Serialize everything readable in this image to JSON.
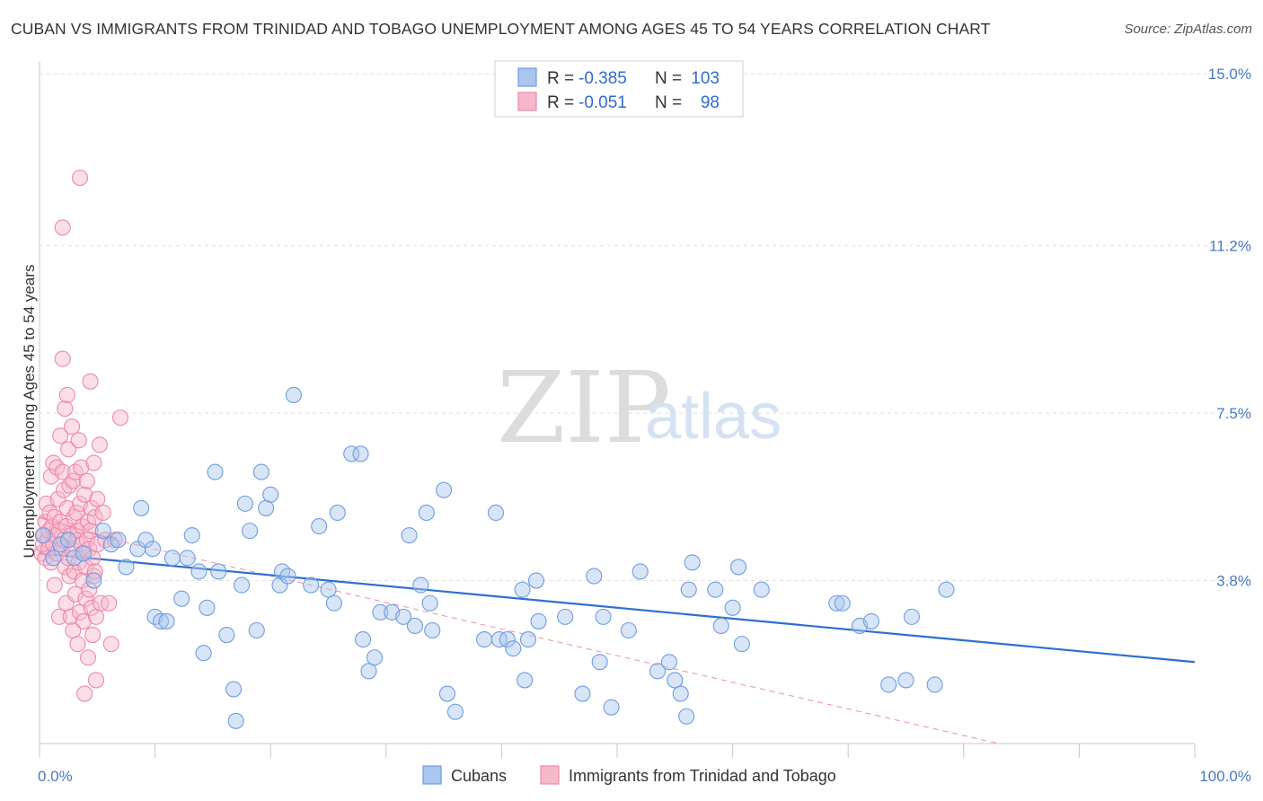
{
  "header": {
    "title": "CUBAN VS IMMIGRANTS FROM TRINIDAD AND TOBAGO UNEMPLOYMENT AMONG AGES 45 TO 54 YEARS CORRELATION CHART",
    "source": "Source: ZipAtlas.com"
  },
  "watermark": {
    "zip": "ZIP",
    "atlas": "atlas"
  },
  "legend": {
    "rows": [
      {
        "r_label": "R =",
        "r_value": "-0.385",
        "n_label": "N =",
        "n_value": "103"
      },
      {
        "r_label": "R =",
        "r_value": "-0.051",
        "n_label": "N =",
        "n_value": "98"
      }
    ],
    "bottom": [
      "Cubans",
      "Immigrants from Trinidad and Tobago"
    ]
  },
  "colors": {
    "cubans_fill": "#a9c6ee",
    "cubans_stroke": "#6f9de0",
    "cubans_line": "#2f6fd1",
    "tt_fill": "#f6b8cb",
    "tt_stroke": "#ee88a8",
    "tt_line": "#e8709a",
    "grid": "#e0e0e0",
    "tick_text": "#4a78c2"
  },
  "chart_data": {
    "type": "scatter",
    "title": "CUBAN VS IMMIGRANTS FROM TRINIDAD AND TOBAGO UNEMPLOYMENT AMONG AGES 45 TO 54 YEARS CORRELATION CHART",
    "xlabel": "",
    "ylabel": "Unemployment Among Ages 45 to 54 years",
    "xlim": [
      0,
      100
    ],
    "ylim": [
      0.2,
      15.2
    ],
    "x_tick_labels": [
      "0.0%",
      "100.0%"
    ],
    "y_ticks": [
      3.8,
      7.5,
      11.2,
      15.0
    ],
    "y_tick_labels": [
      "3.8%",
      "7.5%",
      "11.2%",
      "15.0%"
    ],
    "grid": true,
    "legend_position": "top-center",
    "series": [
      {
        "name": "Cubans",
        "R": -0.385,
        "N": 103,
        "trend": {
          "x0": 0,
          "y0": 4.4,
          "x1": 100,
          "y1": 2.0
        },
        "points": [
          [
            0.3,
            4.8
          ],
          [
            1.2,
            4.3
          ],
          [
            1.8,
            4.6
          ],
          [
            2.5,
            4.7
          ],
          [
            3.0,
            4.3
          ],
          [
            3.8,
            4.4
          ],
          [
            4.7,
            3.8
          ],
          [
            5.5,
            4.9
          ],
          [
            6.2,
            4.6
          ],
          [
            6.8,
            4.7
          ],
          [
            7.5,
            4.1
          ],
          [
            8.5,
            4.5
          ],
          [
            8.8,
            5.4
          ],
          [
            9.2,
            4.7
          ],
          [
            9.8,
            4.5
          ],
          [
            10.0,
            3.0
          ],
          [
            10.5,
            2.9
          ],
          [
            11.0,
            2.9
          ],
          [
            11.5,
            4.3
          ],
          [
            12.3,
            3.4
          ],
          [
            12.8,
            4.3
          ],
          [
            13.2,
            4.8
          ],
          [
            13.8,
            4.0
          ],
          [
            14.2,
            2.2
          ],
          [
            14.5,
            3.2
          ],
          [
            15.2,
            6.2
          ],
          [
            15.5,
            4.0
          ],
          [
            16.2,
            2.6
          ],
          [
            16.8,
            1.4
          ],
          [
            17.0,
            0.7
          ],
          [
            17.5,
            3.7
          ],
          [
            17.8,
            5.5
          ],
          [
            18.2,
            4.9
          ],
          [
            18.8,
            2.7
          ],
          [
            19.2,
            6.2
          ],
          [
            19.6,
            5.4
          ],
          [
            20.0,
            5.7
          ],
          [
            20.8,
            3.7
          ],
          [
            21.0,
            4.0
          ],
          [
            21.5,
            3.9
          ],
          [
            22.0,
            7.9
          ],
          [
            23.5,
            3.7
          ],
          [
            24.2,
            5.0
          ],
          [
            25.0,
            3.6
          ],
          [
            25.5,
            3.3
          ],
          [
            25.8,
            5.3
          ],
          [
            27.0,
            6.6
          ],
          [
            27.8,
            6.6
          ],
          [
            28.0,
            2.5
          ],
          [
            28.5,
            1.8
          ],
          [
            29.0,
            2.1
          ],
          [
            29.5,
            3.1
          ],
          [
            30.5,
            3.1
          ],
          [
            31.5,
            3.0
          ],
          [
            32.0,
            4.8
          ],
          [
            32.5,
            2.8
          ],
          [
            33.0,
            3.7
          ],
          [
            33.5,
            5.3
          ],
          [
            33.8,
            3.3
          ],
          [
            34.0,
            2.7
          ],
          [
            35.0,
            5.8
          ],
          [
            35.3,
            1.3
          ],
          [
            36.0,
            0.9
          ],
          [
            38.5,
            2.5
          ],
          [
            39.5,
            5.3
          ],
          [
            39.8,
            2.5
          ],
          [
            40.5,
            2.5
          ],
          [
            41.0,
            2.3
          ],
          [
            41.8,
            3.6
          ],
          [
            42.0,
            1.6
          ],
          [
            42.3,
            2.5
          ],
          [
            43.0,
            3.8
          ],
          [
            43.2,
            2.9
          ],
          [
            45.5,
            3.0
          ],
          [
            47.0,
            1.3
          ],
          [
            48.0,
            3.9
          ],
          [
            48.5,
            2.0
          ],
          [
            48.8,
            3.0
          ],
          [
            49.5,
            1.0
          ],
          [
            51.0,
            2.7
          ],
          [
            52.0,
            4.0
          ],
          [
            53.5,
            1.8
          ],
          [
            54.5,
            2.0
          ],
          [
            55.0,
            1.6
          ],
          [
            55.5,
            1.3
          ],
          [
            56.0,
            0.8
          ],
          [
            56.2,
            3.6
          ],
          [
            56.5,
            4.2
          ],
          [
            58.5,
            3.6
          ],
          [
            59.0,
            2.8
          ],
          [
            60.0,
            3.2
          ],
          [
            60.5,
            4.1
          ],
          [
            60.8,
            2.4
          ],
          [
            62.5,
            3.6
          ],
          [
            69.0,
            3.3
          ],
          [
            69.5,
            3.3
          ],
          [
            71.0,
            2.8
          ],
          [
            72.0,
            2.9
          ],
          [
            73.5,
            1.5
          ],
          [
            75.0,
            1.6
          ],
          [
            75.5,
            3.0
          ],
          [
            77.5,
            1.5
          ],
          [
            78.5,
            3.6
          ]
        ]
      },
      {
        "name": "Immigrants from Trinidad and Tobago",
        "R": -0.051,
        "N": 98,
        "trend": {
          "x0": 0,
          "y0": 5.2,
          "x1": 6.5,
          "y1": 4.7
        },
        "points": [
          [
            0.2,
            4.4
          ],
          [
            0.3,
            4.6
          ],
          [
            0.4,
            4.8
          ],
          [
            0.5,
            5.1
          ],
          [
            0.5,
            4.3
          ],
          [
            0.6,
            5.5
          ],
          [
            0.7,
            4.7
          ],
          [
            0.8,
            4.9
          ],
          [
            0.8,
            4.5
          ],
          [
            0.9,
            5.3
          ],
          [
            1.0,
            6.1
          ],
          [
            1.0,
            4.2
          ],
          [
            1.1,
            5.0
          ],
          [
            1.2,
            4.6
          ],
          [
            1.2,
            6.4
          ],
          [
            1.3,
            3.7
          ],
          [
            1.3,
            5.2
          ],
          [
            1.4,
            4.8
          ],
          [
            1.5,
            4.4
          ],
          [
            1.5,
            6.3
          ],
          [
            1.6,
            5.6
          ],
          [
            1.7,
            4.9
          ],
          [
            1.7,
            3.0
          ],
          [
            1.8,
            7.0
          ],
          [
            1.8,
            5.1
          ],
          [
            1.9,
            4.5
          ],
          [
            2.0,
            8.7
          ],
          [
            2.0,
            6.2
          ],
          [
            2.1,
            5.8
          ],
          [
            2.1,
            4.7
          ],
          [
            2.2,
            7.6
          ],
          [
            2.2,
            4.1
          ],
          [
            2.3,
            5.0
          ],
          [
            2.3,
            3.3
          ],
          [
            2.4,
            7.9
          ],
          [
            2.4,
            5.4
          ],
          [
            2.5,
            4.3
          ],
          [
            2.5,
            6.7
          ],
          [
            2.6,
            3.9
          ],
          [
            2.6,
            5.9
          ],
          [
            2.7,
            4.8
          ],
          [
            2.7,
            3.0
          ],
          [
            2.8,
            7.2
          ],
          [
            2.8,
            4.5
          ],
          [
            2.9,
            6.0
          ],
          [
            2.9,
            2.7
          ],
          [
            3.0,
            5.2
          ],
          [
            3.0,
            4.0
          ],
          [
            3.1,
            6.2
          ],
          [
            3.1,
            3.5
          ],
          [
            3.2,
            4.7
          ],
          [
            3.2,
            5.3
          ],
          [
            3.3,
            2.4
          ],
          [
            3.3,
            4.9
          ],
          [
            3.4,
            6.9
          ],
          [
            3.4,
            4.2
          ],
          [
            3.5,
            5.5
          ],
          [
            3.5,
            3.1
          ],
          [
            3.6,
            4.6
          ],
          [
            3.6,
            6.3
          ],
          [
            3.7,
            3.8
          ],
          [
            3.7,
            5.0
          ],
          [
            3.8,
            4.4
          ],
          [
            3.8,
            2.9
          ],
          [
            3.9,
            1.3
          ],
          [
            3.9,
            5.7
          ],
          [
            4.0,
            4.1
          ],
          [
            4.0,
            3.4
          ],
          [
            4.1,
            4.7
          ],
          [
            4.1,
            6.0
          ],
          [
            4.2,
            2.1
          ],
          [
            4.2,
            5.1
          ],
          [
            4.3,
            3.6
          ],
          [
            4.3,
            4.5
          ],
          [
            4.4,
            8.2
          ],
          [
            4.4,
            4.9
          ],
          [
            4.5,
            3.2
          ],
          [
            4.5,
            5.4
          ],
          [
            4.6,
            2.6
          ],
          [
            4.6,
            4.3
          ],
          [
            4.7,
            6.4
          ],
          [
            4.7,
            3.9
          ],
          [
            4.8,
            5.2
          ],
          [
            4.8,
            4.0
          ],
          [
            4.9,
            1.6
          ],
          [
            4.9,
            3.0
          ],
          [
            5.0,
            5.6
          ],
          [
            5.0,
            4.6
          ],
          [
            5.2,
            6.8
          ],
          [
            5.3,
            3.3
          ],
          [
            5.5,
            5.3
          ],
          [
            5.7,
            4.7
          ],
          [
            6.0,
            3.3
          ],
          [
            6.2,
            2.4
          ],
          [
            6.5,
            4.7
          ],
          [
            7.0,
            7.4
          ],
          [
            2.0,
            11.6
          ],
          [
            3.5,
            12.7
          ]
        ]
      }
    ],
    "dashed_projection": {
      "series": "Immigrants from Trinidad and Tobago",
      "x0": 6.5,
      "y0": 4.7,
      "x1": 83.0,
      "y1": 0.2
    }
  }
}
